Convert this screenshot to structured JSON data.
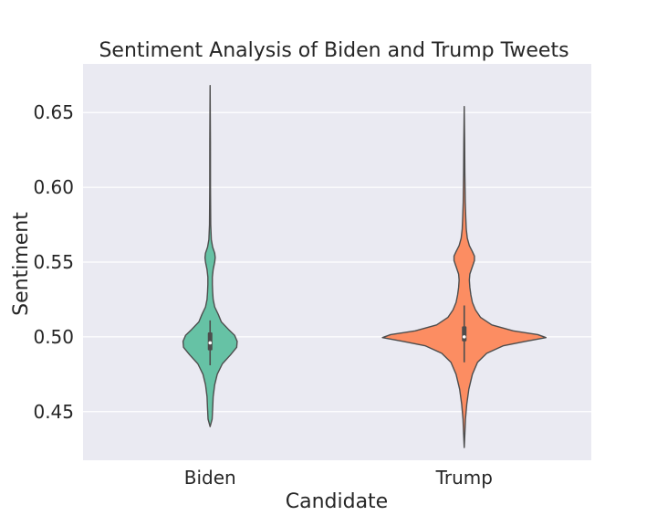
{
  "chart_data": {
    "type": "violin",
    "title": "Sentiment Analysis of Biden and Trump Tweets",
    "xlabel": "Candidate",
    "ylabel": "Sentiment",
    "categories": [
      "Biden",
      "Trump"
    ],
    "ylim": [
      0.4175,
      0.6825
    ],
    "yticks": [
      0.45,
      0.5,
      0.55,
      0.6,
      0.65
    ],
    "ytick_labels": [
      "0.45",
      "0.50",
      "0.55",
      "0.60",
      "0.65"
    ],
    "grid": true,
    "background": "#eaeaf2",
    "colors": [
      "#66c2a5",
      "#fc8d62"
    ],
    "violins": [
      {
        "category": "Biden",
        "min": 0.44,
        "max": 0.668,
        "q1": 0.491,
        "median": 0.496,
        "q3": 0.503,
        "whisker_low": 0.481,
        "whisker_high": 0.511,
        "density": [
          [
            0.44,
            0.0
          ],
          [
            0.445,
            0.02
          ],
          [
            0.452,
            0.025
          ],
          [
            0.46,
            0.03
          ],
          [
            0.468,
            0.045
          ],
          [
            0.475,
            0.07
          ],
          [
            0.482,
            0.12
          ],
          [
            0.488,
            0.2
          ],
          [
            0.493,
            0.26
          ],
          [
            0.497,
            0.265
          ],
          [
            0.501,
            0.24
          ],
          [
            0.505,
            0.18
          ],
          [
            0.51,
            0.11
          ],
          [
            0.515,
            0.08
          ],
          [
            0.52,
            0.045
          ],
          [
            0.525,
            0.03
          ],
          [
            0.53,
            0.025
          ],
          [
            0.535,
            0.022
          ],
          [
            0.54,
            0.022
          ],
          [
            0.545,
            0.03
          ],
          [
            0.55,
            0.045
          ],
          [
            0.553,
            0.05
          ],
          [
            0.556,
            0.045
          ],
          [
            0.56,
            0.025
          ],
          [
            0.565,
            0.012
          ],
          [
            0.575,
            0.006
          ],
          [
            0.6,
            0.0035
          ],
          [
            0.63,
            0.003
          ],
          [
            0.668,
            0.0
          ]
        ]
      },
      {
        "category": "Trump",
        "min": 0.426,
        "max": 0.654,
        "q1": 0.497,
        "median": 0.5,
        "q3": 0.507,
        "whisker_low": 0.483,
        "whisker_high": 0.521,
        "density": [
          [
            0.426,
            0.0
          ],
          [
            0.435,
            0.006
          ],
          [
            0.445,
            0.012
          ],
          [
            0.455,
            0.025
          ],
          [
            0.465,
            0.045
          ],
          [
            0.475,
            0.08
          ],
          [
            0.483,
            0.13
          ],
          [
            0.489,
            0.22
          ],
          [
            0.494,
            0.38
          ],
          [
            0.497,
            0.6
          ],
          [
            0.4995,
            0.8
          ],
          [
            0.5015,
            0.72
          ],
          [
            0.504,
            0.48
          ],
          [
            0.508,
            0.27
          ],
          [
            0.513,
            0.16
          ],
          [
            0.518,
            0.11
          ],
          [
            0.523,
            0.08
          ],
          [
            0.528,
            0.065
          ],
          [
            0.533,
            0.055
          ],
          [
            0.538,
            0.05
          ],
          [
            0.542,
            0.055
          ],
          [
            0.547,
            0.08
          ],
          [
            0.551,
            0.1
          ],
          [
            0.554,
            0.1
          ],
          [
            0.557,
            0.08
          ],
          [
            0.561,
            0.05
          ],
          [
            0.566,
            0.03
          ],
          [
            0.572,
            0.02
          ],
          [
            0.58,
            0.015
          ],
          [
            0.59,
            0.01
          ],
          [
            0.61,
            0.006
          ],
          [
            0.63,
            0.004
          ],
          [
            0.654,
            0.0
          ]
        ]
      }
    ]
  }
}
